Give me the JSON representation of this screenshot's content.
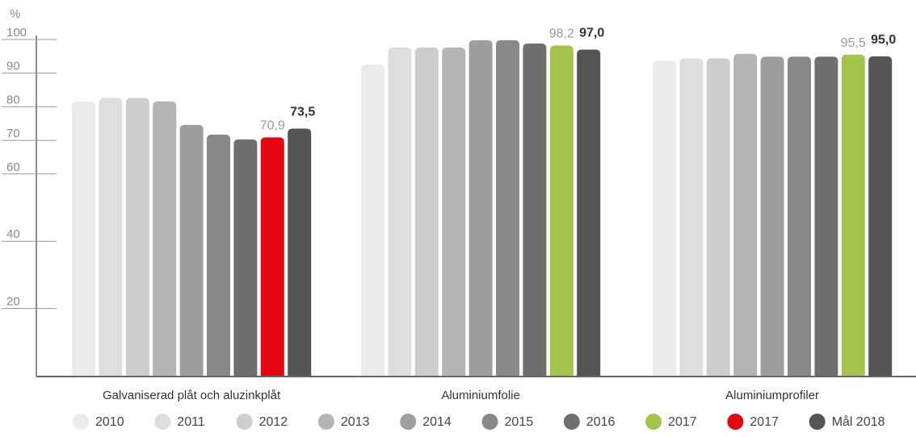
{
  "chart_data": {
    "type": "bar",
    "y_axis_label": "%",
    "categories": [
      "Galvaniserad plåt och aluzinkplåt",
      "Aluminiumfolie",
      "Aluminiumprofiler"
    ],
    "ylim": [
      0,
      100
    ],
    "yticks": [
      20,
      40,
      60,
      70,
      80,
      90,
      100
    ],
    "series": [
      {
        "name": "2010",
        "color": "#ebebeb",
        "values": [
          81.6,
          92.5,
          93.7
        ]
      },
      {
        "name": "2011",
        "color": "#dedede",
        "values": [
          82.6,
          97.6,
          94.4
        ]
      },
      {
        "name": "2012",
        "color": "#cdcdcd",
        "values": [
          82.6,
          97.6,
          94.4
        ]
      },
      {
        "name": "2013",
        "color": "#b4b4b4",
        "values": [
          81.6,
          97.6,
          95.7
        ]
      },
      {
        "name": "2014",
        "color": "#9e9e9e",
        "values": [
          74.6,
          99.8,
          94.9
        ]
      },
      {
        "name": "2015",
        "color": "#888888",
        "values": [
          71.7,
          99.8,
          94.9
        ]
      },
      {
        "name": "2016",
        "color": "#6f6f6f",
        "values": [
          70.3,
          98.8,
          94.9
        ]
      },
      {
        "name": "2017",
        "color": "#a3c54b",
        "values": [
          null,
          98.2,
          95.5
        ],
        "value_labels": [
          null,
          "98,2",
          "95,5"
        ]
      },
      {
        "name": "2017",
        "color": "#e30613",
        "values": [
          70.9,
          null,
          null
        ],
        "value_labels": [
          "70,9",
          null,
          null
        ]
      },
      {
        "name": "Mål 2018",
        "color": "#555555",
        "values": [
          73.5,
          97.0,
          95.0
        ],
        "value_labels": [
          "73,5",
          "97,0",
          "95,0"
        ]
      }
    ]
  }
}
